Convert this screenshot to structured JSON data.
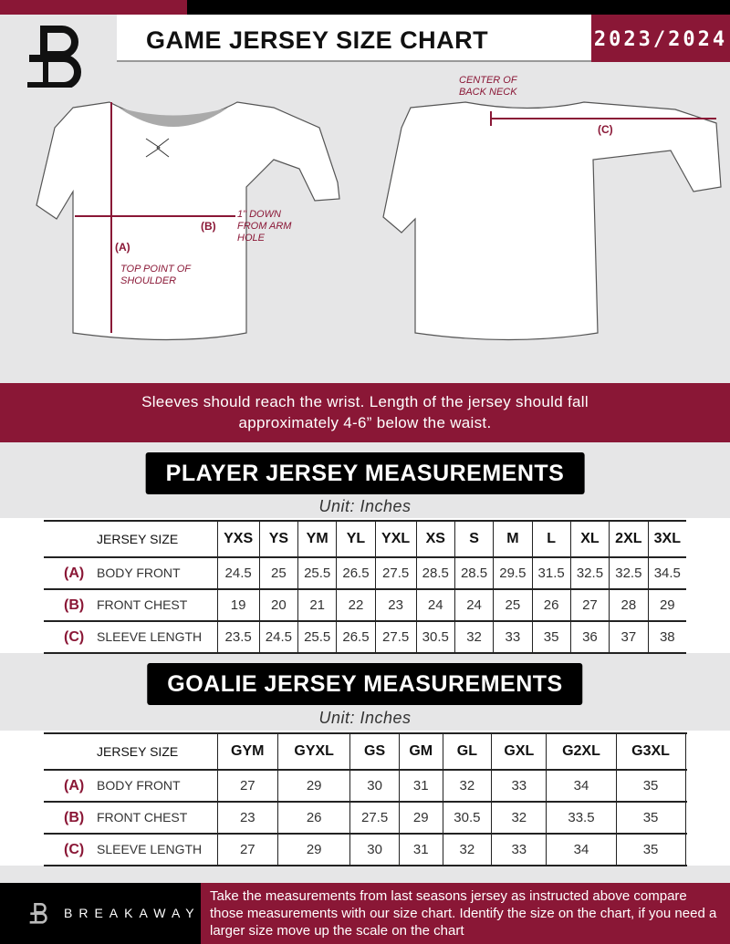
{
  "header": {
    "title": "GAME JERSEY SIZE CHART",
    "season": "2023/2024",
    "logo_letter": "B"
  },
  "diagram": {
    "center_back_neck": "CENTER OF BACK NECK",
    "label_a": "(A)",
    "label_b": "(B)",
    "label_c": "(C)",
    "one_inch_down": "1\" DOWN FROM ARM HOLE",
    "top_point": "TOP POINT OF SHOULDER"
  },
  "banner": {
    "text": "Sleeves should reach the wrist. Length of the jersey should fall approximately 4-6” below the waist."
  },
  "player": {
    "title": "PLAYER JERSEY MEASUREMENTS",
    "unit": "Unit: Inches",
    "size_header": "JERSEY SIZE",
    "sizes": [
      "YXS",
      "YS",
      "YM",
      "YL",
      "YXL",
      "XS",
      "S",
      "M",
      "L",
      "XL",
      "2XL",
      "3XL"
    ],
    "rows": [
      {
        "letter": "(A)",
        "label": "BODY FRONT",
        "values": [
          "24.5",
          "25",
          "25.5",
          "26.5",
          "27.5",
          "28.5",
          "28.5",
          "29.5",
          "31.5",
          "32.5",
          "32.5",
          "34.5"
        ]
      },
      {
        "letter": "(B)",
        "label": "FRONT CHEST",
        "values": [
          "19",
          "20",
          "21",
          "22",
          "23",
          "24",
          "24",
          "25",
          "26",
          "27",
          "28",
          "29"
        ]
      },
      {
        "letter": "(C)",
        "label": "SLEEVE LENGTH",
        "values": [
          "23.5",
          "24.5",
          "25.5",
          "26.5",
          "27.5",
          "30.5",
          "32",
          "33",
          "35",
          "36",
          "37",
          "38"
        ]
      }
    ]
  },
  "goalie": {
    "title": "GOALIE JERSEY MEASUREMENTS",
    "unit": "Unit: Inches",
    "size_header": "JERSEY SIZE",
    "sizes": [
      "GYM",
      "GYXL",
      "GS",
      "GM",
      "GL",
      "GXL",
      "G2XL",
      "G3XL",
      ""
    ],
    "rows": [
      {
        "letter": "(A)",
        "label": "BODY FRONT",
        "values": [
          "27",
          "29",
          "30",
          "31",
          "32",
          "33",
          "34",
          "35",
          ""
        ]
      },
      {
        "letter": "(B)",
        "label": "FRONT CHEST",
        "values": [
          "23",
          "26",
          "27.5",
          "29",
          "30.5",
          "32",
          "33.5",
          "35",
          ""
        ]
      },
      {
        "letter": "(C)",
        "label": "SLEEVE LENGTH",
        "values": [
          "27",
          "29",
          "30",
          "31",
          "32",
          "33",
          "34",
          "35",
          ""
        ]
      }
    ]
  },
  "footer": {
    "brand": "BREAKAWAY",
    "text": "Take the measurements from last seasons jersey as instructed above compare those measurements  with our size chart. Identify the size on the chart, if you need a larger size move up the scale on the chart"
  },
  "colors": {
    "accent": "#8a1736",
    "dark": "#000000",
    "background": "#e6e6e7"
  }
}
